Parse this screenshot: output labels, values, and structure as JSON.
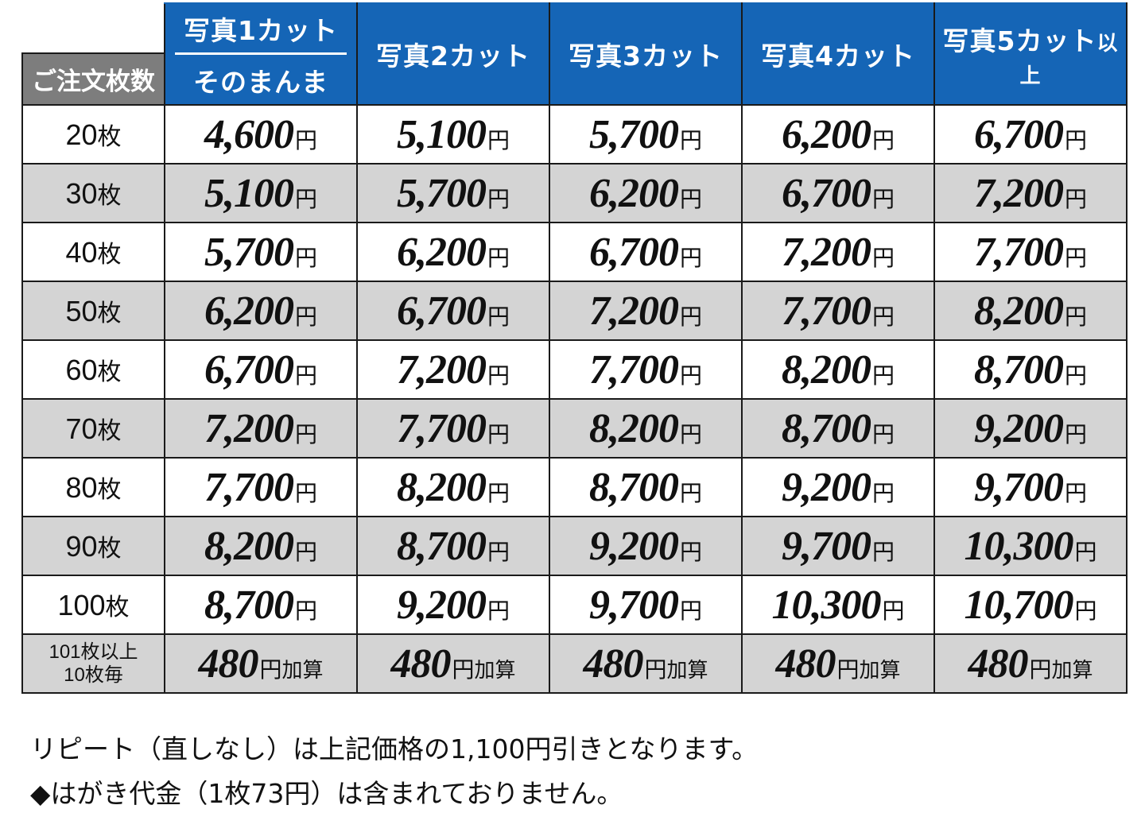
{
  "table": {
    "qty_header": "ご注文枚数",
    "columns": [
      {
        "line1": "写真1カット",
        "line2": "そのまんま"
      },
      {
        "label": "写真2カット",
        "suffix": ""
      },
      {
        "label": "写真3カット",
        "suffix": ""
      },
      {
        "label": "写真4カット",
        "suffix": ""
      },
      {
        "label": "写真5カット",
        "suffix": "以上"
      }
    ],
    "unit_sheet": "枚",
    "currency": "円",
    "rows": [
      {
        "qty": "20",
        "prices": [
          "4,600",
          "5,100",
          "5,700",
          "6,200",
          "6,700"
        ]
      },
      {
        "qty": "30",
        "prices": [
          "5,100",
          "5,700",
          "6,200",
          "6,700",
          "7,200"
        ]
      },
      {
        "qty": "40",
        "prices": [
          "5,700",
          "6,200",
          "6,700",
          "7,200",
          "7,700"
        ]
      },
      {
        "qty": "50",
        "prices": [
          "6,200",
          "6,700",
          "7,200",
          "7,700",
          "8,200"
        ]
      },
      {
        "qty": "60",
        "prices": [
          "6,700",
          "7,200",
          "7,700",
          "8,200",
          "8,700"
        ]
      },
      {
        "qty": "70",
        "prices": [
          "7,200",
          "7,700",
          "8,200",
          "8,700",
          "9,200"
        ]
      },
      {
        "qty": "80",
        "prices": [
          "7,700",
          "8,200",
          "8,700",
          "9,200",
          "9,700"
        ]
      },
      {
        "qty": "90",
        "prices": [
          "8,200",
          "8,700",
          "9,200",
          "9,700",
          "10,300"
        ]
      },
      {
        "qty": "100",
        "prices": [
          "8,700",
          "9,200",
          "9,700",
          "10,300",
          "10,700"
        ]
      }
    ],
    "extra_row": {
      "qty_line1": "101枚以上",
      "qty_line2": "10枚毎",
      "price": "480",
      "suffix": "加算"
    }
  },
  "notes": [
    "リピート（直しなし）は上記価格の1,100円引きとなります。",
    "◆はがき代金（1枚73円）は含まれておりません。"
  ],
  "colors": {
    "header_blue": "#1565b6",
    "qty_header_gray": "#7d7d7d",
    "row_gray": "#d4d4d4"
  }
}
